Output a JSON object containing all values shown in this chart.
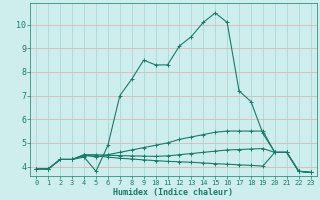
{
  "xlabel": "Humidex (Indice chaleur)",
  "bg_color": "#ceeeed",
  "grid_color": "#aad8d5",
  "line_color": "#1a7a6a",
  "xlim": [
    -0.5,
    23.5
  ],
  "ylim": [
    3.6,
    10.9
  ],
  "xticks": [
    0,
    1,
    2,
    3,
    4,
    5,
    6,
    7,
    8,
    9,
    10,
    11,
    12,
    13,
    14,
    15,
    16,
    17,
    18,
    19,
    20,
    21,
    22,
    23
  ],
  "yticks": [
    4,
    5,
    6,
    7,
    8,
    9,
    10
  ],
  "lines": [
    {
      "x": [
        0,
        1,
        2,
        3,
        4,
        5,
        6,
        7,
        8,
        9,
        10,
        11,
        12,
        13,
        14,
        15,
        16,
        17,
        18,
        19,
        20,
        21,
        22,
        23
      ],
      "y": [
        3.9,
        3.9,
        4.3,
        4.3,
        4.4,
        3.8,
        4.9,
        7.0,
        7.7,
        8.5,
        8.3,
        8.3,
        9.1,
        9.5,
        10.1,
        10.5,
        10.1,
        7.2,
        6.75,
        5.4,
        4.6,
        4.6,
        3.8,
        3.75
      ]
    },
    {
      "x": [
        0,
        1,
        2,
        3,
        4,
        5,
        6,
        7,
        8,
        9,
        10,
        11,
        12,
        13,
        14,
        15,
        16,
        17,
        18,
        19,
        20,
        21,
        22,
        23
      ],
      "y": [
        3.9,
        3.9,
        4.3,
        4.3,
        4.5,
        4.4,
        4.5,
        4.6,
        4.7,
        4.8,
        4.9,
        5.0,
        5.15,
        5.25,
        5.35,
        5.45,
        5.5,
        5.5,
        5.5,
        5.5,
        4.6,
        4.6,
        3.8,
        3.75
      ]
    },
    {
      "x": [
        0,
        1,
        2,
        3,
        4,
        5,
        6,
        7,
        8,
        9,
        10,
        11,
        12,
        13,
        14,
        15,
        16,
        17,
        18,
        19,
        20,
        21,
        22,
        23
      ],
      "y": [
        3.9,
        3.9,
        4.3,
        4.3,
        4.45,
        4.45,
        4.4,
        4.35,
        4.32,
        4.28,
        4.25,
        4.22,
        4.2,
        4.18,
        4.15,
        4.12,
        4.1,
        4.07,
        4.05,
        4.02,
        4.6,
        4.6,
        3.8,
        3.75
      ]
    },
    {
      "x": [
        0,
        1,
        2,
        3,
        4,
        5,
        6,
        7,
        8,
        9,
        10,
        11,
        12,
        13,
        14,
        15,
        16,
        17,
        18,
        19,
        20,
        21,
        22,
        23
      ],
      "y": [
        3.9,
        3.9,
        4.3,
        4.3,
        4.5,
        4.5,
        4.48,
        4.46,
        4.45,
        4.44,
        4.43,
        4.45,
        4.5,
        4.55,
        4.6,
        4.65,
        4.7,
        4.72,
        4.74,
        4.76,
        4.6,
        4.6,
        3.8,
        3.75
      ]
    }
  ]
}
